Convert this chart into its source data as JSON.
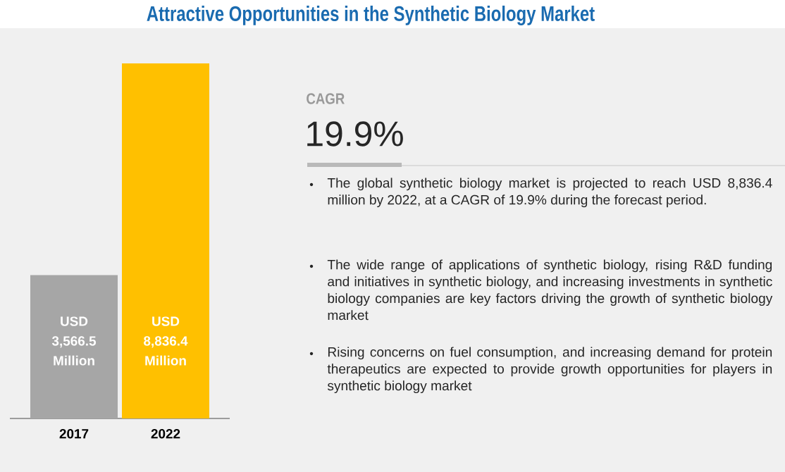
{
  "chart_data": {
    "type": "bar",
    "title": "Attractive Opportunities in the Synthetic Biology Market",
    "categories": [
      "2017",
      "2022"
    ],
    "values": [
      3566.5,
      8836.4
    ],
    "colors": [
      "#a6a6a6",
      "#ffc000"
    ],
    "value_labels": [
      "USD 3,566.5 Million",
      "USD 8,836.4 Million"
    ],
    "annotations": [
      "CAGR",
      "19.9%",
      "The global synthetic biology market is projected to reach USD 8,836.4 million by 2022, at a CAGR of 19.9% during the forecast period.",
      "The wide range of applications of synthetic biology, rising R&D funding and initiatives in synthetic biology, and increasing investments in synthetic biology companies are key factors driving the growth of synthetic biology market",
      "Rising concerns on fuel consumption, and increasing demand for protein therapeutics are expected to provide growth opportunities for players in synthetic biology market"
    ]
  }
}
